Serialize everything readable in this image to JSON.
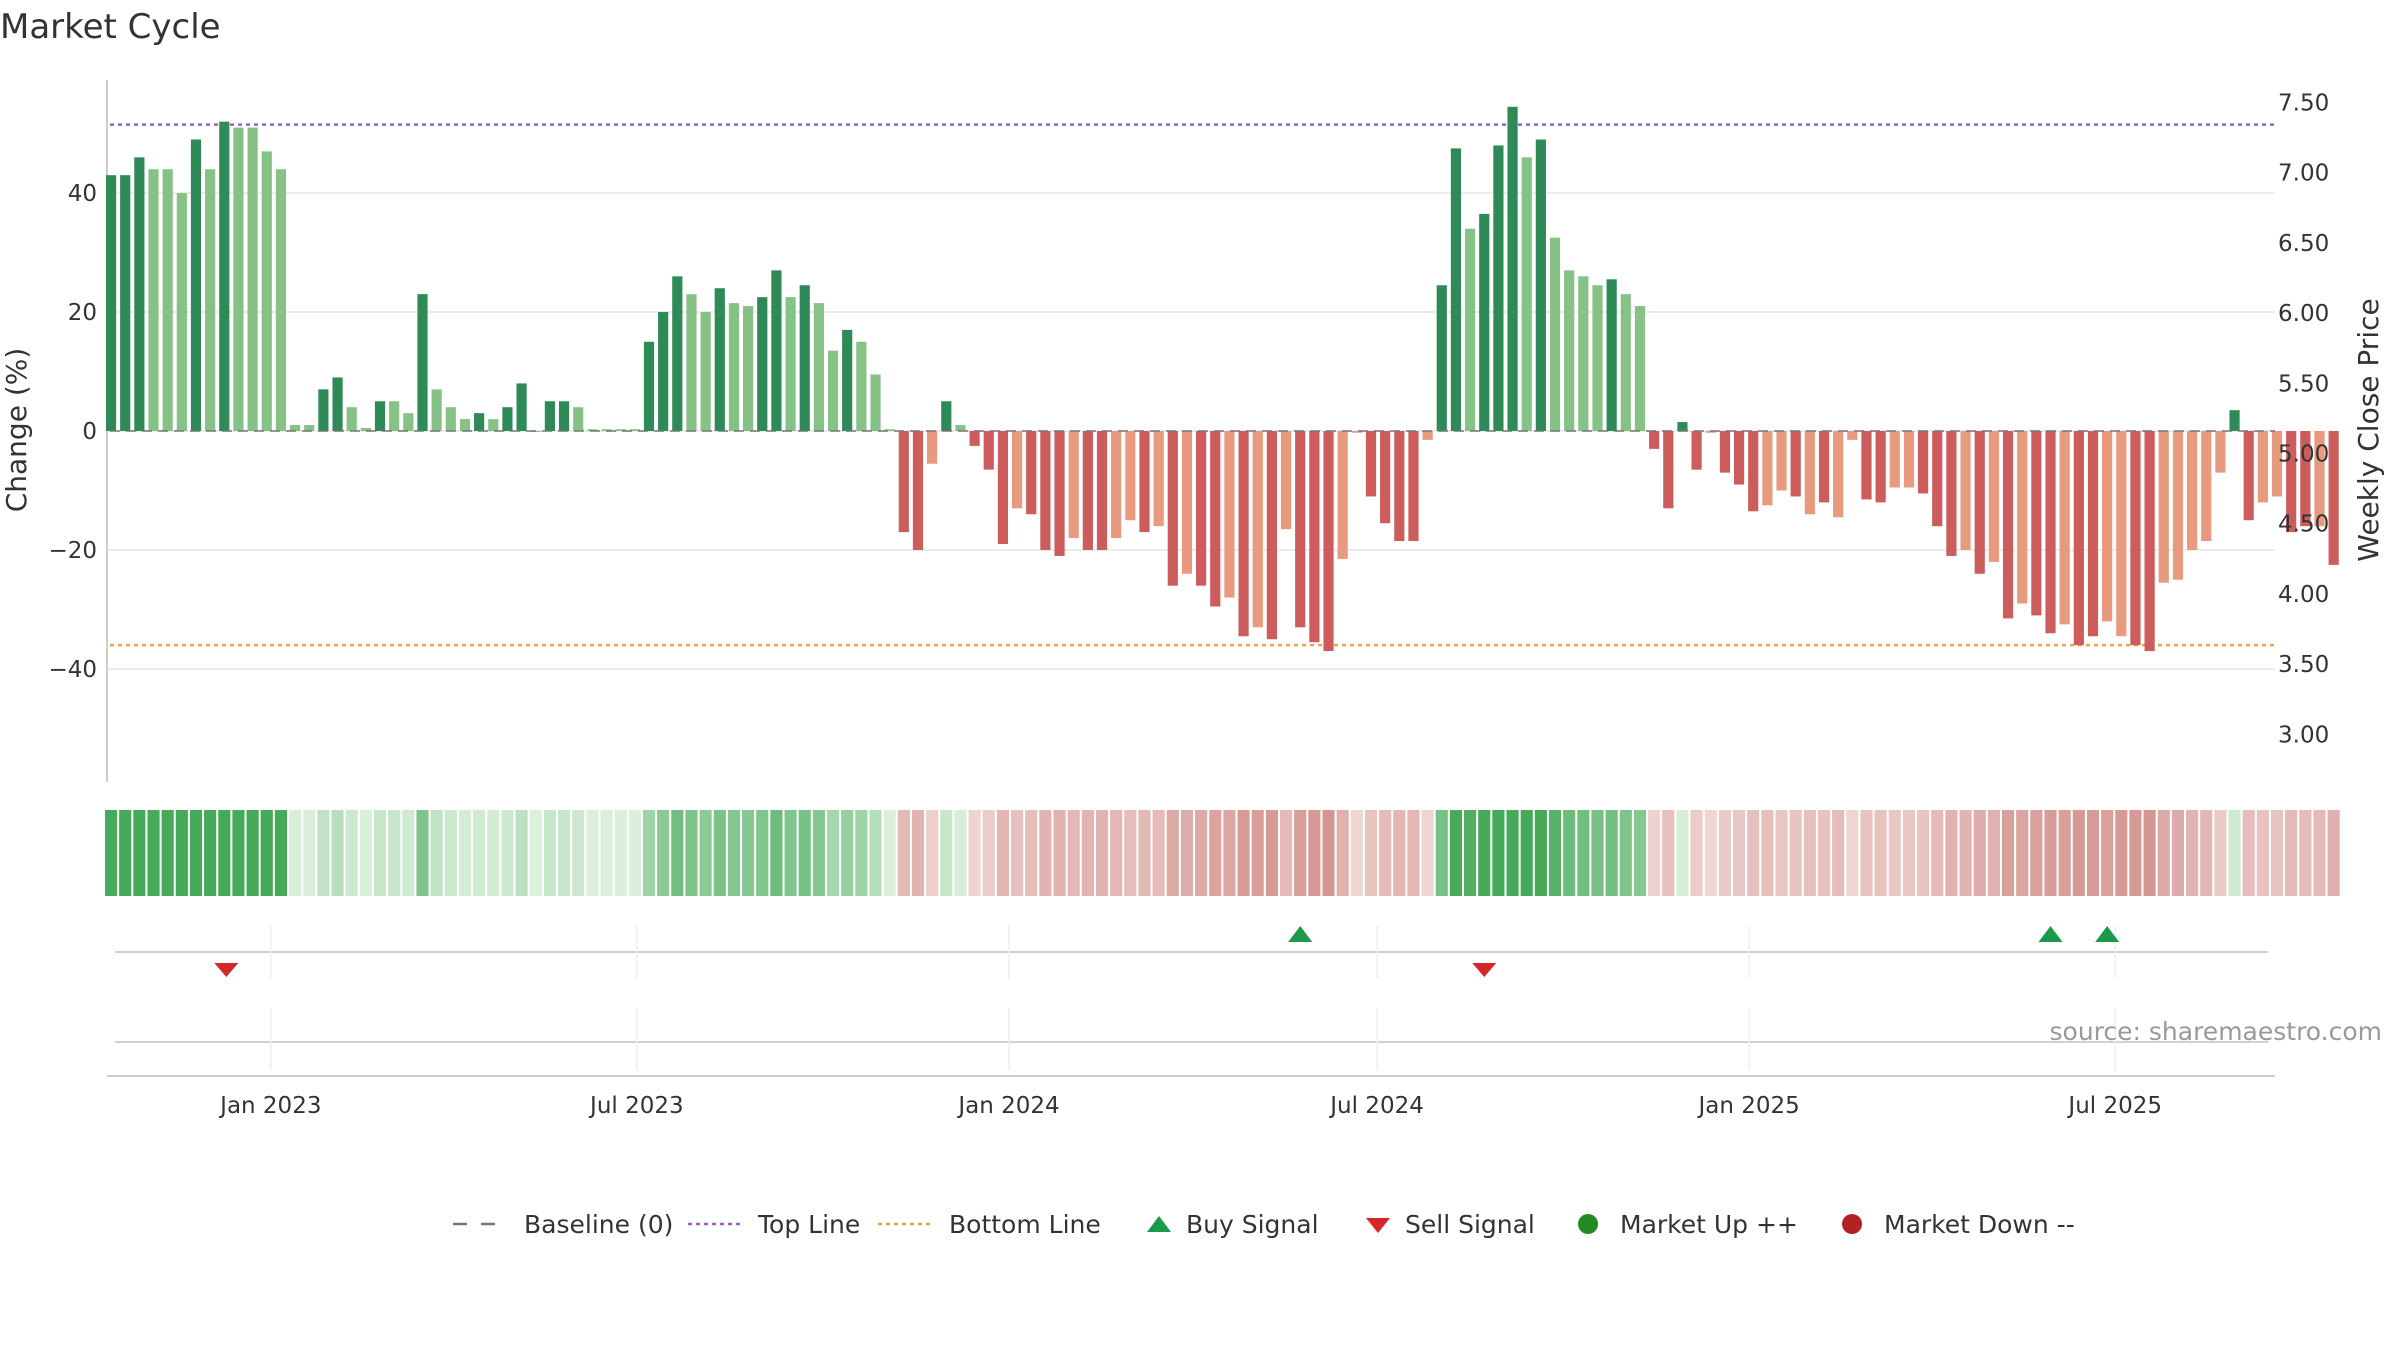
{
  "title": "Market Cycle",
  "source": "source: sharemaestro.com",
  "colors": {
    "up_strong": "#2e8b57",
    "up_light": "#86c286",
    "down_strong": "#cd5c5c",
    "down_light": "#e89a7e",
    "top_line": "#9467bd",
    "bottom_line": "#f0a050",
    "buy": "#1a9a4a",
    "sell": "#d62728",
    "market_up": "#228b22",
    "market_down": "#b22222",
    "baseline": "#777777"
  },
  "legend": [
    {
      "label": "Baseline (0)",
      "icon": "dash-line"
    },
    {
      "label": "Top Line",
      "icon": "dotted-purple-line"
    },
    {
      "label": "Bottom Line",
      "icon": "dotted-orange-line"
    },
    {
      "label": "Buy Signal",
      "icon": "triangle-up"
    },
    {
      "label": "Sell Signal",
      "icon": "triangle-down"
    },
    {
      "label": "Market Up ++",
      "icon": "green-circle"
    },
    {
      "label": "Market Down --",
      "icon": "red-circle"
    }
  ],
  "chart_data": {
    "type": "bar",
    "title": "Market Cycle",
    "ylabel": "Change (%)",
    "y2label": "Weekly Close Price",
    "ylim": [
      -59,
      59
    ],
    "y2lim": [
      2.66,
      7.66
    ],
    "yticks": [
      40,
      20,
      0,
      -20,
      -40
    ],
    "ytick_labels": [
      "40",
      "20",
      "0",
      "−20",
      "−40"
    ],
    "y2ticks": [
      7.5,
      7.0,
      6.5,
      6.0,
      5.5,
      5.0,
      4.5,
      4.0,
      3.5,
      3.0
    ],
    "y2tick_labels": [
      "7.50",
      "7.00",
      "6.50",
      "6.00",
      "5.50",
      "5.00",
      "4.50",
      "4.00",
      "3.50",
      "3.00"
    ],
    "x_range": [
      "2022-10-12",
      "2025-09-18"
    ],
    "xticks": [
      "2023-01-01",
      "2023-07-01",
      "2024-01-01",
      "2024-07-01",
      "2025-01-01",
      "2025-07-01"
    ],
    "xtick_labels": [
      "Jan 2023",
      "Jul 2023",
      "Jan 2024",
      "Jul 2024",
      "Jan 2025",
      "Jul 2025"
    ],
    "top_line": 51.5,
    "bottom_line": -36,
    "grid": true,
    "legend_position": "bottom-center",
    "start_date": "2022-10-14",
    "week_step_days": 7,
    "values": [
      43,
      43,
      46,
      44,
      44,
      40,
      49,
      44,
      52,
      51,
      51,
      47,
      44,
      1,
      1,
      7,
      9,
      4,
      0.5,
      5,
      5,
      3,
      23,
      7,
      4,
      2,
      3,
      2,
      4,
      8,
      0,
      5,
      5,
      4,
      0.3,
      0.3,
      0.3,
      0.3,
      15,
      20,
      26,
      23,
      20,
      24,
      21.5,
      21,
      22.5,
      27,
      22.5,
      24.5,
      21.5,
      13.5,
      17,
      15,
      9.5,
      0.3,
      -17,
      -20,
      -5.5,
      5,
      1,
      -2.5,
      -6.5,
      -19,
      -13,
      -14,
      -20,
      -21,
      -18,
      -20,
      -20,
      -18,
      -15,
      -17,
      -16,
      -26,
      -24,
      -26,
      -29.5,
      -28,
      -34.5,
      -33,
      -35,
      -16.5,
      -33,
      -35.5,
      -37,
      -21.5,
      -0.3,
      -11,
      -15.5,
      -18.5,
      -18.5,
      -1.5,
      24.5,
      47.5,
      34,
      36.5,
      48,
      54.5,
      46,
      49,
      32.5,
      27,
      26,
      24.5,
      25.5,
      23,
      21,
      -3,
      -13,
      1.5,
      -6.5,
      -0.3,
      -7,
      -9,
      -13.5,
      -12.5,
      -10,
      -11,
      -14,
      -12,
      -14.5,
      -1.5,
      -11.5,
      -12,
      -9.5,
      -9.5,
      -10.5,
      -16,
      -21,
      -20,
      -24,
      -22,
      -31.5,
      -29,
      -31,
      -34,
      -32.5,
      -36,
      -34.5,
      -32,
      -34.5,
      -36,
      -37,
      -25.5,
      -25,
      -20,
      -18.5,
      -7,
      3.5,
      -15,
      -12,
      -11,
      -17,
      -16,
      -16,
      -22.5
    ],
    "shades": [
      2,
      2,
      2,
      1,
      1,
      1,
      2,
      1,
      2,
      1,
      1,
      1,
      1,
      1,
      1,
      2,
      2,
      1,
      1,
      2,
      1,
      1,
      2,
      1,
      1,
      1,
      2,
      1,
      2,
      2,
      1,
      2,
      2,
      1,
      1,
      1,
      1,
      1,
      2,
      2,
      2,
      1,
      1,
      2,
      1,
      1,
      2,
      2,
      1,
      2,
      1,
      1,
      2,
      1,
      1,
      1,
      2,
      2,
      1,
      2,
      1,
      2,
      2,
      2,
      1,
      2,
      2,
      2,
      1,
      2,
      2,
      1,
      1,
      2,
      1,
      2,
      1,
      2,
      2,
      1,
      2,
      1,
      2,
      1,
      2,
      2,
      2,
      1,
      1,
      2,
      2,
      2,
      2,
      1,
      2,
      2,
      1,
      2,
      2,
      2,
      1,
      2,
      1,
      1,
      1,
      1,
      2,
      1,
      1,
      2,
      2,
      2,
      2,
      1,
      2,
      2,
      2,
      1,
      1,
      2,
      1,
      2,
      1,
      1,
      2,
      2,
      1,
      1,
      2,
      2,
      2,
      1,
      2,
      1,
      2,
      1,
      2,
      2,
      1,
      2,
      2,
      1,
      1,
      2,
      2,
      1,
      1,
      1,
      1,
      1,
      2,
      2,
      1,
      1,
      2,
      2,
      1,
      2
    ],
    "markers": [
      {
        "type": "sell",
        "date": "2022-12-10"
      },
      {
        "type": "buy",
        "date": "2024-05-24"
      },
      {
        "type": "sell",
        "date": "2024-08-23"
      },
      {
        "type": "buy",
        "date": "2025-05-30"
      },
      {
        "type": "buy",
        "date": "2025-06-27"
      }
    ]
  }
}
